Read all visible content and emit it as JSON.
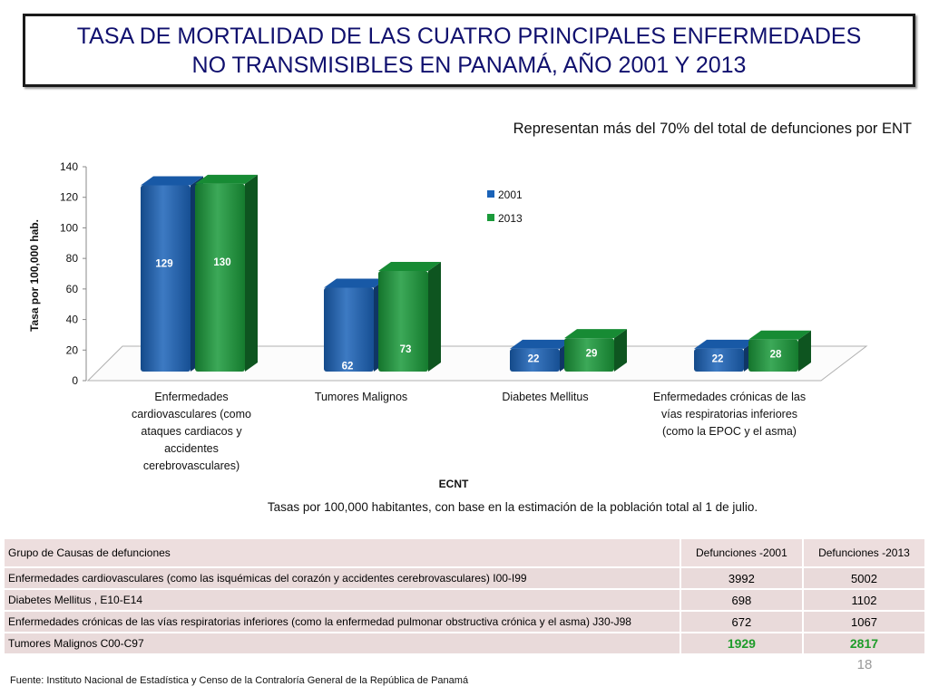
{
  "title": "TASA DE MORTALIDAD DE LAS CUATRO PRINCIPALES ENFERMEDADES NO TRANSMISIBLES EN  PANAMÁ, AÑO 2001 Y 2013",
  "subtitle": "Representan más del  70% del total de defunciones por ENT",
  "chart_data": {
    "type": "bar",
    "title": "",
    "xlabel": "ECNT",
    "ylabel": "Tasa por 100,000 hab.",
    "ylim": [
      0,
      140
    ],
    "yticks": [
      "0",
      "20",
      "40",
      "60",
      "80",
      "100",
      "120",
      "140"
    ],
    "categories": [
      [
        "Enfermedades",
        "cardiovasculares (como",
        "ataques cardiacos y",
        "accidentes",
        "cerebrovasculares)"
      ],
      [
        "Tumores Malignos"
      ],
      [
        "Diabetes Mellitus"
      ],
      [
        "Enfermedades crónicas de las",
        "vías respiratorias inferiores",
        "(como la EPOC y el asma)"
      ]
    ],
    "series": [
      {
        "name": "2001",
        "values": [
          129,
          62,
          22,
          22
        ],
        "color": "#1b63b8"
      },
      {
        "name": "2013",
        "values": [
          130,
          73,
          29,
          28
        ],
        "color": "#1a9a3a"
      }
    ],
    "legend": "top-right"
  },
  "note": "Tasas por 100,000  habitantes, con base en la estimación de la población total  al 1 de julio.",
  "table": {
    "header": [
      "Grupo de Causas de defunciones",
      "Defunciones -2001",
      "Defunciones -2013"
    ],
    "rows": [
      [
        "Enfermedades cardiovasculares (como las isquémicas del corazón y accidentes cerebrovasculares) I00-I99",
        "3992",
        "5002"
      ],
      [
        "Diabetes Mellitus , E10-E14",
        "698",
        "1102"
      ],
      [
        "Enfermedades crónicas de las vías respiratorias inferiores (como la enfermedad pulmonar obstructiva crónica y el asma) J30-J98",
        "672",
        "1067"
      ],
      [
        "Tumores Malignos C00-C97",
        "1929",
        "2817"
      ]
    ]
  },
  "page_number": "18",
  "footer": "Fuente: Instituto Nacional de Estadística y Censo de la Contraloría General de la República de Panamá"
}
